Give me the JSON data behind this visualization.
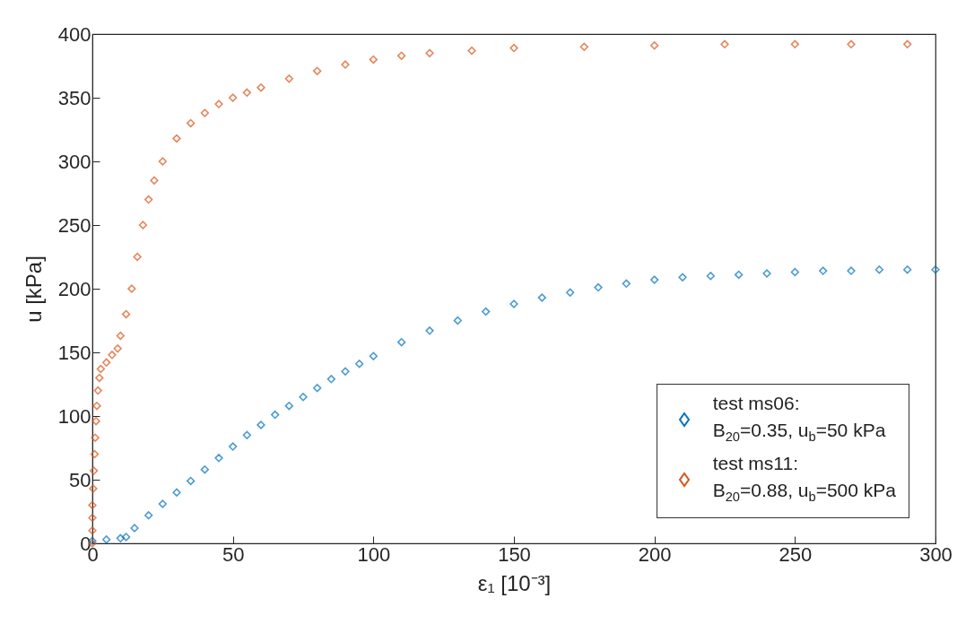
{
  "chart_data": {
    "type": "scatter",
    "xlabel": "ε₁ [10⁻³]",
    "ylabel": "u [kPa]",
    "xlim": [
      0,
      300
    ],
    "xticks": [
      0,
      50,
      100,
      150,
      200,
      250,
      300
    ],
    "ylim": [
      0,
      400
    ],
    "yticks": [
      0,
      50,
      100,
      150,
      200,
      250,
      300,
      350,
      400
    ],
    "grid": false,
    "legend": "bottom right",
    "marker": "diamond",
    "series": [
      {
        "name": "test ms06:\nB$_{20}$=0.35, u$_{b}$=50 kPa",
        "color": "#0072bd",
        "x": [
          0,
          5,
          10,
          12,
          15,
          20,
          25,
          30,
          35,
          40,
          45,
          50,
          55,
          60,
          65,
          70,
          75,
          80,
          85,
          90,
          95,
          100,
          110,
          120,
          130,
          140,
          150,
          160,
          170,
          180,
          190,
          200,
          210,
          220,
          230,
          240,
          250,
          260,
          270,
          280,
          290,
          300
        ],
        "values": [
          2,
          3,
          4,
          5,
          12,
          22,
          31,
          40,
          49,
          58,
          67,
          76,
          85,
          93,
          101,
          108,
          115,
          122,
          129,
          135,
          141,
          147,
          158,
          167,
          175,
          182,
          188,
          193,
          197,
          201,
          204,
          207,
          209,
          210,
          211,
          212,
          213,
          214,
          214,
          215,
          215,
          215
        ]
      },
      {
        "name": "test ms11:\nB$_{20}$=0.88, u$_{b}$=500 kPa",
        "color": "#d95319",
        "x": [
          0,
          0,
          0,
          0,
          0.3,
          0.5,
          0.8,
          1,
          1.3,
          1.6,
          2,
          2.5,
          3,
          5,
          7,
          9,
          10,
          12,
          14,
          16,
          18,
          20,
          22,
          25,
          30,
          35,
          40,
          45,
          50,
          55,
          60,
          70,
          80,
          90,
          100,
          110,
          120,
          135,
          150,
          175,
          200,
          225,
          250,
          270,
          290
        ],
        "values": [
          0,
          10,
          20,
          30,
          43,
          57,
          70,
          83,
          96,
          108,
          120,
          130,
          137,
          142,
          148,
          153,
          163,
          180,
          200,
          225,
          250,
          270,
          285,
          300,
          318,
          330,
          338,
          345,
          350,
          354,
          358,
          365,
          371,
          376,
          380,
          383,
          385,
          387,
          389,
          390,
          391,
          392,
          392,
          392,
          392
        ]
      }
    ]
  }
}
